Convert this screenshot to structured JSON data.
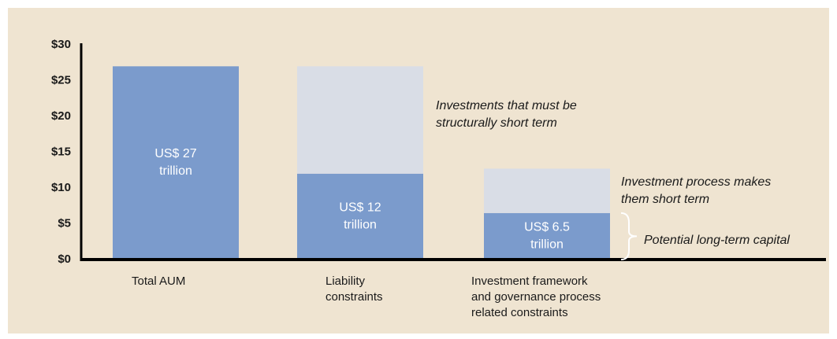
{
  "chart_data": {
    "type": "stacked_bar",
    "categories": [
      "Total AUM",
      "Liability\nconstraints",
      "Investment framework\nand governance process\nrelated constraints"
    ],
    "series": [
      {
        "color": "#7b9bcc",
        "values": [
          27,
          12,
          6.5
        ],
        "value_labels": [
          "US$ 27\ntrillion",
          "US$ 12\ntrillion",
          "US$ 6.5\ntrillion"
        ]
      },
      {
        "color": "#d9dde6",
        "values": [
          0,
          15,
          6.2
        ]
      }
    ],
    "annotations": [
      "Investments that must be\nstructurally short term",
      "Investment process makes\nthem short term",
      "Potential long-term capital"
    ],
    "ylim": [
      0,
      30
    ],
    "yticks": [
      {
        "value": 0,
        "label": "$0"
      },
      {
        "value": 5,
        "label": "$5"
      },
      {
        "value": 10,
        "label": "$10"
      },
      {
        "value": 15,
        "label": "$15"
      },
      {
        "value": 20,
        "label": "$20"
      },
      {
        "value": 25,
        "label": "$25"
      },
      {
        "value": 30,
        "label": "$30"
      }
    ],
    "grid": false,
    "background": "#efe4d1"
  }
}
